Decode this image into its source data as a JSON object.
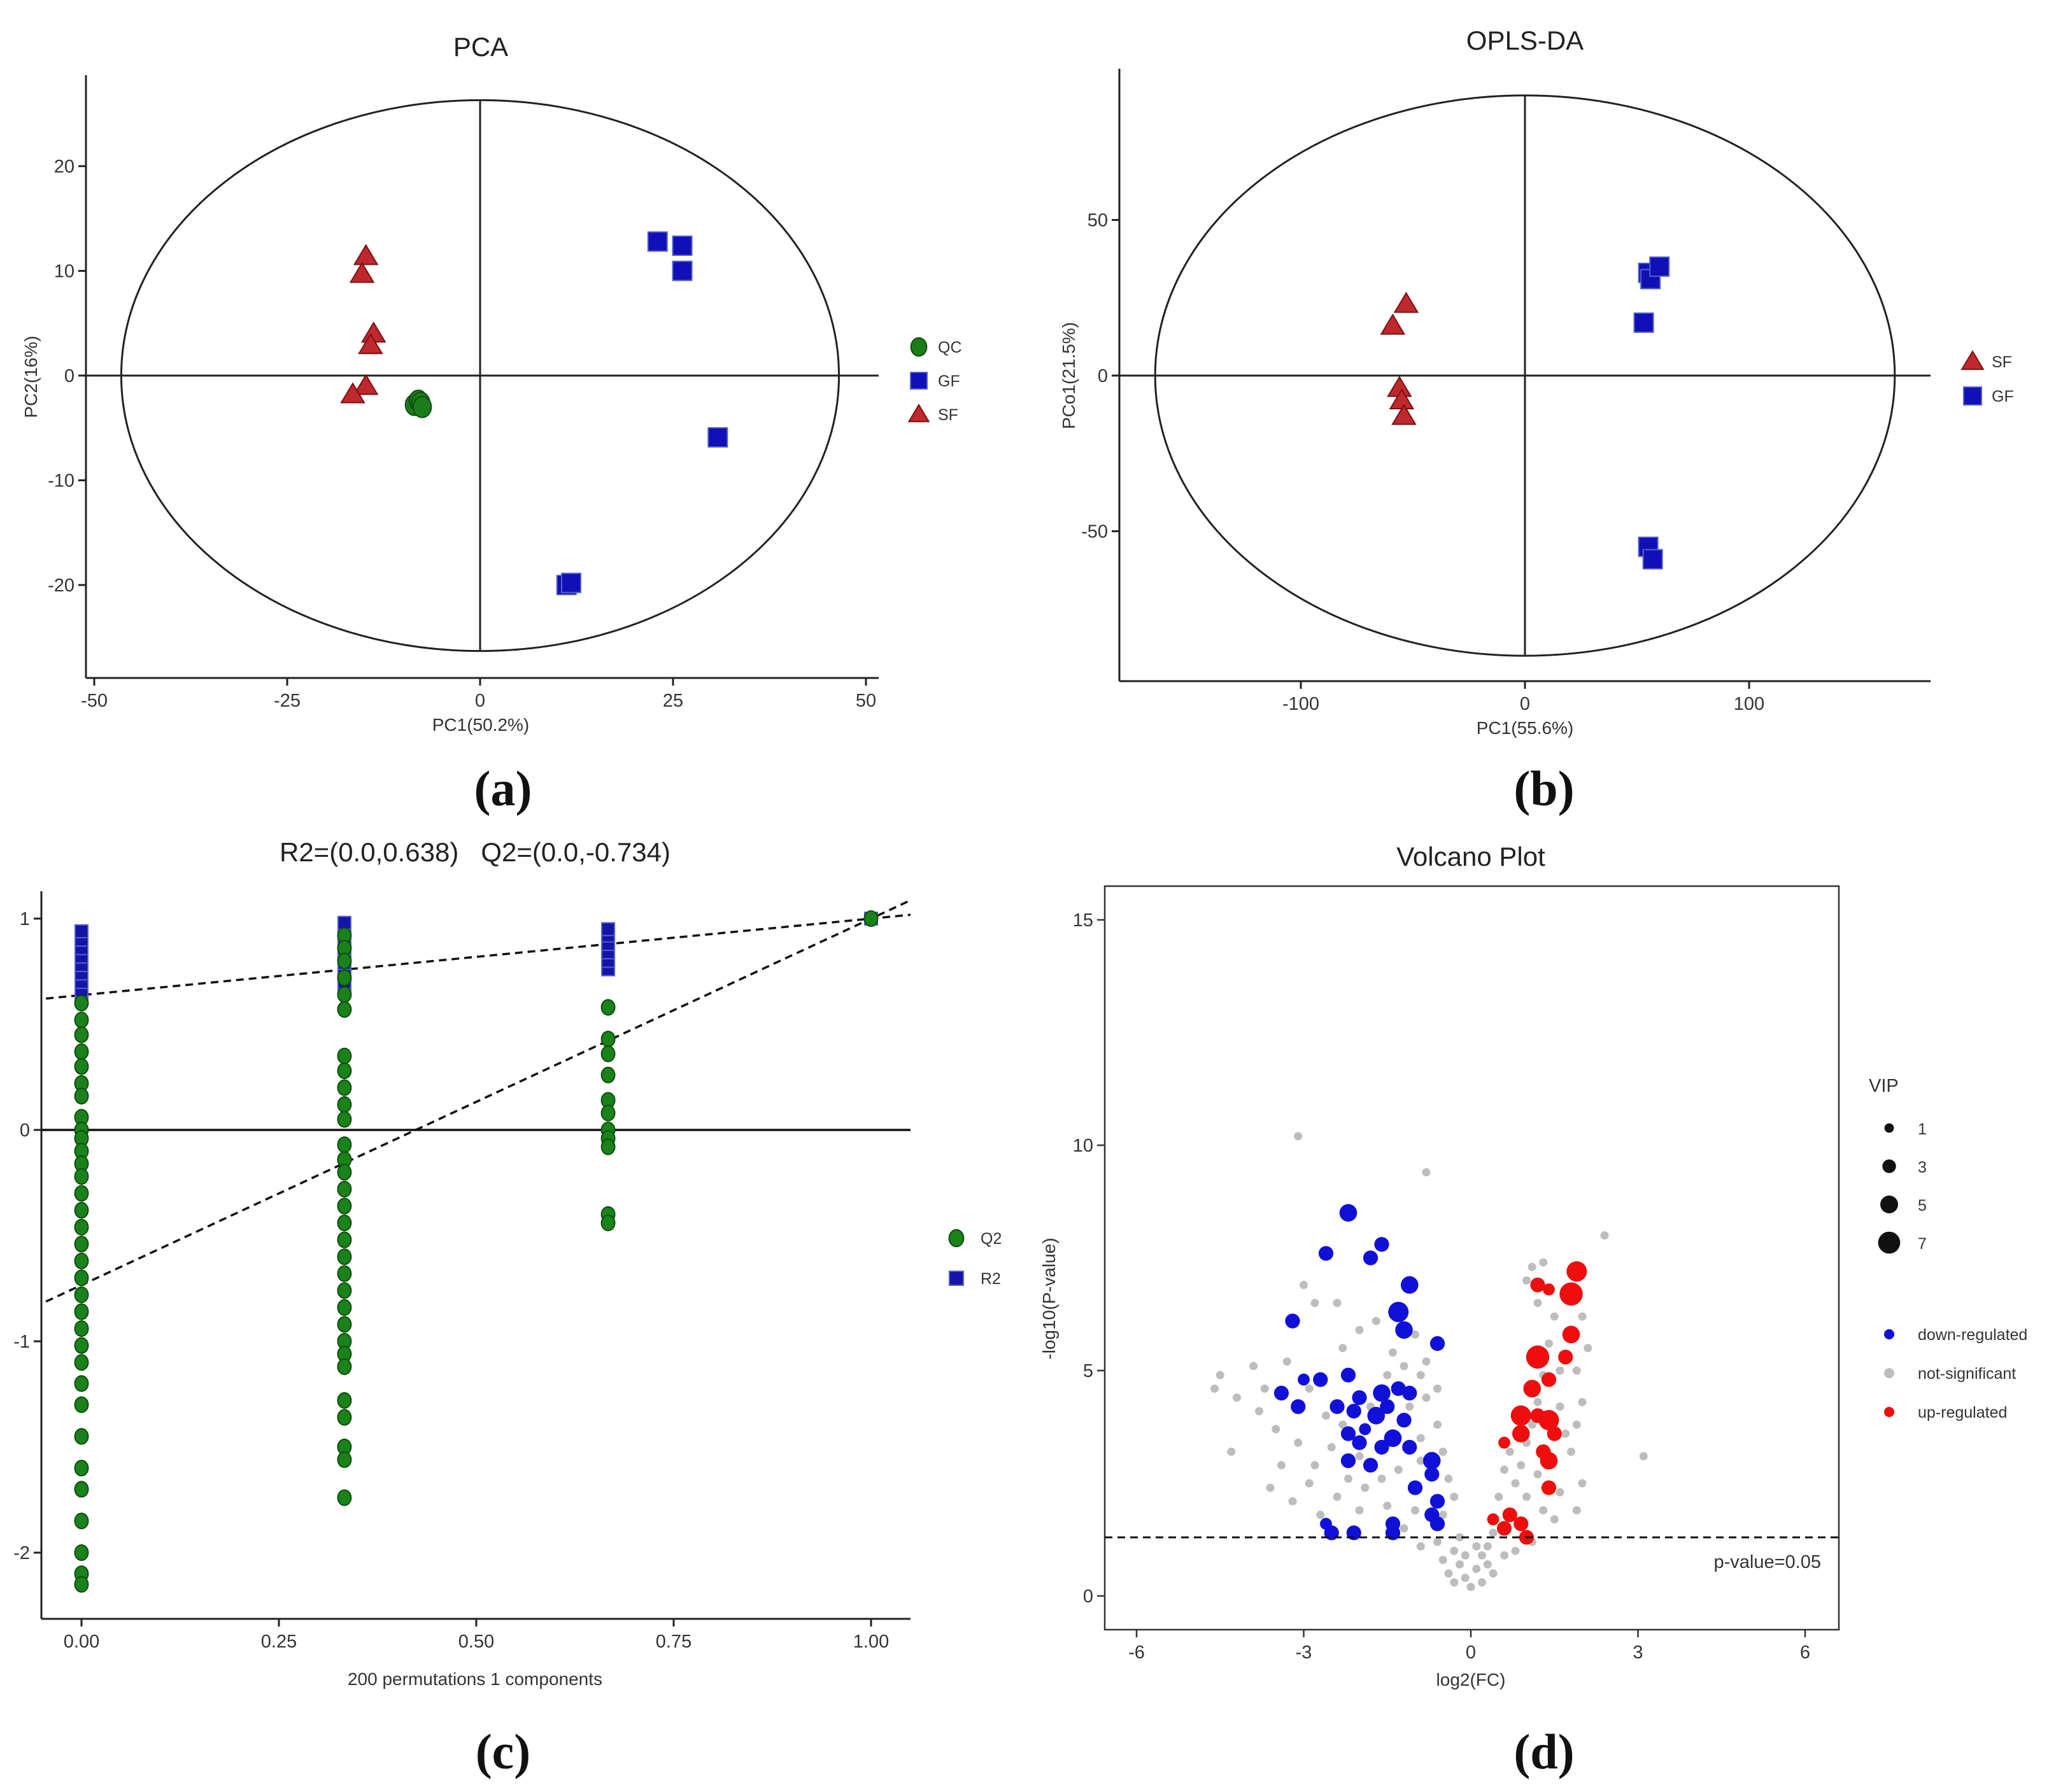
{
  "chart_data": [
    {
      "id": "a",
      "type": "scatter",
      "panel_label": "(a)",
      "title": "PCA",
      "xlabel": "PC1(50.2%)",
      "ylabel": "PC2(16%)",
      "xlim": [
        -50,
        50
      ],
      "ylim": [
        -28,
        29
      ],
      "xticks": [
        -50,
        -25,
        0,
        25,
        50
      ],
      "yticks": [
        -20,
        -10,
        0,
        10,
        20
      ],
      "ellipse": {
        "cx": 0,
        "cy": 0,
        "rx": 46.5,
        "ry": 26.3
      },
      "legend": [
        "QC",
        "GF",
        "SF"
      ],
      "series": [
        {
          "name": "QC",
          "marker": "circle",
          "color": "#1a7d1a",
          "points": [
            [
              -8.5,
              -2.8
            ],
            [
              -8.0,
              -2.4
            ],
            [
              -7.7,
              -2.6
            ],
            [
              -7.5,
              -3.0
            ]
          ]
        },
        {
          "name": "GF",
          "marker": "square",
          "color": "#1010b8",
          "points": [
            [
              23,
              12.8
            ],
            [
              26.2,
              12.4
            ],
            [
              26.2,
              10
            ],
            [
              30.8,
              -5.9
            ],
            [
              11.2,
              -20
            ],
            [
              11.8,
              -19.8
            ]
          ]
        },
        {
          "name": "SF",
          "marker": "triangle",
          "color": "#c0282d",
          "points": [
            [
              -14.8,
              11.4
            ],
            [
              -15.3,
              9.7
            ],
            [
              -13.8,
              4
            ],
            [
              -14.2,
              2.9
            ],
            [
              -14.8,
              -1
            ],
            [
              -16.5,
              -1.8
            ]
          ]
        }
      ]
    },
    {
      "id": "b",
      "type": "scatter",
      "panel_label": "(b)",
      "title": "OPLS-DA",
      "xlabel": "PC1(55.6%)",
      "ylabel": "PCo1(21.5%)",
      "xlim": [
        -180,
        180
      ],
      "ylim": [
        -100,
        100
      ],
      "xticks": [
        -100,
        0,
        100
      ],
      "yticks": [
        -50,
        0,
        50
      ],
      "ellipse": {
        "cx": 0,
        "cy": 0,
        "rx": 165,
        "ry": 90
      },
      "legend": [
        "SF",
        "GF"
      ],
      "series": [
        {
          "name": "SF",
          "marker": "triangle",
          "color": "#c0282d",
          "points": [
            [
              -59,
              16
            ],
            [
              -53,
              23
            ],
            [
              -56,
              -4
            ],
            [
              -55,
              -8
            ],
            [
              -54,
              -13
            ]
          ]
        },
        {
          "name": "GF",
          "marker": "square",
          "color": "#1010b8",
          "points": [
            [
              55,
              33
            ],
            [
              56,
              31
            ],
            [
              60,
              35
            ],
            [
              53,
              17
            ],
            [
              55,
              -55
            ],
            [
              57,
              -59
            ]
          ]
        }
      ]
    },
    {
      "id": "c",
      "type": "scatter",
      "panel_label": "(c)",
      "title": "R2=(0.0,0.638)   Q2=(0.0,-0.734)",
      "xlabel": "200 permutations 1 components",
      "ylabel": "",
      "xlim": [
        -0.045,
        1.05
      ],
      "ylim": [
        -2.33,
        1.12
      ],
      "xticks": [
        "0.00",
        "0.25",
        "0.50",
        "0.75",
        "1.00"
      ],
      "yticks": [
        "1",
        "0",
        "-1",
        "-2"
      ],
      "legend": [
        "Q2",
        "R2"
      ],
      "R2_line": {
        "intercept": 0.638,
        "slope": 0.362
      },
      "Q2_line": {
        "intercept": -0.734,
        "slope": 1.734
      },
      "R2_points": [
        {
          "x": 0.0,
          "values": [
            0.62,
            0.66,
            0.7,
            0.74,
            0.78,
            0.82,
            0.86,
            0.9,
            0.94
          ]
        },
        {
          "x": 0.333,
          "values": [
            0.66,
            0.7,
            0.73,
            0.76,
            0.79,
            0.82,
            0.86,
            0.9,
            0.94,
            0.98
          ]
        },
        {
          "x": 0.667,
          "values": [
            0.76,
            0.8,
            0.84,
            0.88,
            0.92,
            0.95
          ]
        },
        {
          "x": 1.0,
          "values": [
            1.0
          ]
        }
      ],
      "Q2_points": [
        {
          "x": 0.0,
          "values": [
            0.6,
            0.52,
            0.45,
            0.37,
            0.3,
            0.22,
            0.16,
            0.06,
            0.0,
            -0.04,
            -0.1,
            -0.16,
            -0.22,
            -0.3,
            -0.38,
            -0.46,
            -0.54,
            -0.62,
            -0.7,
            -0.78,
            -0.86,
            -0.94,
            -1.02,
            -1.1,
            -1.2,
            -1.3,
            -1.45,
            -1.6,
            -1.7,
            -1.85,
            -2.0,
            -2.1,
            -2.15
          ]
        },
        {
          "x": 0.333,
          "values": [
            0.92,
            0.86,
            0.8,
            0.72,
            0.64,
            0.57,
            0.35,
            0.28,
            0.2,
            0.12,
            0.05,
            -0.07,
            -0.14,
            -0.2,
            -0.28,
            -0.36,
            -0.44,
            -0.52,
            -0.6,
            -0.68,
            -0.76,
            -0.84,
            -0.92,
            -1.0,
            -1.06,
            -1.12,
            -1.28,
            -1.36,
            -1.5,
            -1.56,
            -1.74
          ]
        },
        {
          "x": 0.667,
          "values": [
            0.58,
            0.43,
            0.36,
            0.26,
            0.14,
            0.08,
            0.0,
            -0.04,
            -0.08,
            -0.4,
            -0.44
          ]
        },
        {
          "x": 1.0,
          "values": [
            1.0
          ]
        }
      ]
    },
    {
      "id": "d",
      "type": "scatter",
      "panel_label": "(d)",
      "title": "Volcano Plot",
      "xlabel": "log2(FC)",
      "ylabel": "-log10(P-value)",
      "xlim": [
        -6.5,
        6.5
      ],
      "ylim": [
        -0.8,
        15.8
      ],
      "xticks": [
        -6,
        -3,
        0,
        3,
        6
      ],
      "yticks": [
        0,
        5,
        10,
        15
      ],
      "threshold": {
        "value": 1.3,
        "label": "p-value=0.05"
      },
      "vip_legend": {
        "title": "VIP",
        "levels": [
          1,
          3,
          5,
          7
        ]
      },
      "legend": [
        "down-regulated",
        "not-significant",
        "up-regulated"
      ],
      "colors": {
        "down": "#1010d8",
        "ns": "#bdbdbd",
        "up": "#ee0e0e"
      },
      "down_points": [
        [
          -2.2,
          8.5,
          4
        ],
        [
          -2.6,
          7.6,
          3
        ],
        [
          -1.6,
          7.8,
          3
        ],
        [
          -1.8,
          7.5,
          3
        ],
        [
          -1.1,
          6.9,
          4
        ],
        [
          -1.3,
          6.3,
          5
        ],
        [
          -1.2,
          5.9,
          4
        ],
        [
          -3.2,
          6.1,
          3
        ],
        [
          -0.6,
          5.6,
          3
        ],
        [
          -2.7,
          4.8,
          3
        ],
        [
          -3.0,
          4.8,
          2
        ],
        [
          -3.4,
          4.5,
          3
        ],
        [
          -3.1,
          4.2,
          3
        ],
        [
          -2.2,
          4.9,
          3
        ],
        [
          -2.0,
          4.4,
          3
        ],
        [
          -1.6,
          4.5,
          4
        ],
        [
          -1.3,
          4.6,
          3
        ],
        [
          -1.1,
          4.5,
          3
        ],
        [
          -2.1,
          4.1,
          3
        ],
        [
          -2.4,
          4.2,
          3
        ],
        [
          -1.7,
          4.0,
          4
        ],
        [
          -1.5,
          4.2,
          3
        ],
        [
          -1.2,
          3.9,
          3
        ],
        [
          -1.9,
          3.7,
          2
        ],
        [
          -1.4,
          3.5,
          4
        ],
        [
          -1.1,
          3.3,
          3
        ],
        [
          -2.2,
          3.6,
          3
        ],
        [
          -2.0,
          3.4,
          3
        ],
        [
          -1.6,
          3.3,
          3
        ],
        [
          -0.7,
          3.0,
          4
        ],
        [
          -0.7,
          2.7,
          3
        ],
        [
          -2.2,
          3.0,
          3
        ],
        [
          -1.8,
          2.9,
          3
        ],
        [
          -1.0,
          2.4,
          3
        ],
        [
          -0.6,
          2.1,
          3
        ],
        [
          -0.7,
          1.8,
          3
        ],
        [
          -0.6,
          1.6,
          3
        ],
        [
          -1.4,
          1.6,
          3
        ],
        [
          -2.6,
          1.6,
          2
        ],
        [
          -2.1,
          1.4,
          3
        ],
        [
          -2.5,
          1.4,
          3
        ],
        [
          -1.4,
          1.4,
          3
        ]
      ],
      "up_points": [
        [
          1.9,
          7.2,
          5
        ],
        [
          1.8,
          6.7,
          6
        ],
        [
          1.2,
          6.9,
          3
        ],
        [
          1.4,
          6.8,
          2
        ],
        [
          1.2,
          5.3,
          6
        ],
        [
          1.7,
          5.3,
          3
        ],
        [
          1.8,
          5.8,
          4
        ],
        [
          1.1,
          4.6,
          4
        ],
        [
          1.4,
          4.8,
          3
        ],
        [
          0.9,
          4.0,
          5
        ],
        [
          1.2,
          4.0,
          3
        ],
        [
          1.4,
          3.9,
          5
        ],
        [
          1.5,
          3.6,
          3
        ],
        [
          0.9,
          3.6,
          4
        ],
        [
          0.6,
          3.4,
          2
        ],
        [
          1.3,
          3.2,
          3
        ],
        [
          1.4,
          3.0,
          4
        ],
        [
          1.4,
          2.4,
          3
        ],
        [
          0.7,
          1.8,
          3
        ],
        [
          0.4,
          1.7,
          2
        ],
        [
          0.6,
          1.5,
          3
        ],
        [
          0.9,
          1.6,
          3
        ],
        [
          1.0,
          1.3,
          3
        ]
      ],
      "ns_points": [
        [
          -3.1,
          10.2
        ],
        [
          -0.8,
          9.4
        ],
        [
          2.4,
          8.0
        ],
        [
          -3.0,
          6.9
        ],
        [
          -2.8,
          6.5
        ],
        [
          -2.4,
          6.5
        ],
        [
          -4.5,
          4.9
        ],
        [
          -4.6,
          4.6
        ],
        [
          -4.2,
          4.4
        ],
        [
          -3.9,
          5.1
        ],
        [
          -4.3,
          3.2
        ],
        [
          -3.6,
          2.4
        ],
        [
          -3.2,
          2.1
        ],
        [
          -2.7,
          1.8
        ],
        [
          -2.4,
          2.2
        ],
        [
          3.1,
          3.1
        ],
        [
          2.0,
          6.2
        ],
        [
          2.1,
          5.5
        ],
        [
          1.9,
          5.0
        ],
        [
          2.0,
          4.3
        ],
        [
          1.9,
          3.8
        ],
        [
          2.0,
          2.5
        ],
        [
          1.9,
          1.9
        ],
        [
          0.5,
          2.2
        ],
        [
          0.3,
          1.1
        ],
        [
          -0.3,
          1.0
        ],
        [
          -0.5,
          0.8
        ],
        [
          0.1,
          0.6
        ],
        [
          -0.1,
          0.4
        ],
        [
          0.0,
          0.2
        ],
        [
          0.2,
          0.3
        ],
        [
          -0.2,
          0.7
        ],
        [
          0.4,
          0.5
        ],
        [
          -0.4,
          0.5
        ],
        [
          0.6,
          0.9
        ],
        [
          -0.6,
          1.2
        ],
        [
          0.8,
          1.0
        ],
        [
          -0.9,
          1.1
        ],
        [
          1.1,
          1.2
        ],
        [
          -1.2,
          1.5
        ],
        [
          -3.3,
          5.2
        ],
        [
          -2.9,
          4.6
        ],
        [
          -2.6,
          4.0
        ],
        [
          -2.3,
          3.8
        ],
        [
          -2.5,
          3.3
        ],
        [
          -2.0,
          3.1
        ],
        [
          -1.8,
          4.2
        ],
        [
          -1.5,
          4.9
        ],
        [
          -1.2,
          5.1
        ],
        [
          -0.9,
          4.9
        ],
        [
          -1.4,
          5.4
        ],
        [
          -2.3,
          5.5
        ],
        [
          -2.0,
          5.9
        ],
        [
          -1.7,
          6.1
        ],
        [
          -1.0,
          5.8
        ],
        [
          -0.8,
          4.4
        ],
        [
          -0.6,
          3.8
        ],
        [
          -0.9,
          3.5
        ],
        [
          -0.5,
          3.2
        ],
        [
          -1.3,
          2.8
        ],
        [
          -1.6,
          2.6
        ],
        [
          -1.9,
          2.4
        ],
        [
          -2.2,
          2.6
        ],
        [
          -2.8,
          2.9
        ],
        [
          -3.1,
          3.4
        ],
        [
          -3.5,
          3.7
        ],
        [
          -3.8,
          4.1
        ],
        [
          -0.4,
          2.6
        ],
        [
          -0.3,
          2.2
        ],
        [
          -0.5,
          1.8
        ],
        [
          -1.0,
          1.9
        ],
        [
          -1.5,
          2.0
        ],
        [
          -2.0,
          1.9
        ],
        [
          -2.9,
          2.5
        ],
        [
          -3.4,
          2.9
        ],
        [
          -3.7,
          4.6
        ],
        [
          -0.9,
          3.0
        ],
        [
          -1.1,
          4.2
        ],
        [
          -0.8,
          5.2
        ],
        [
          -0.6,
          4.6
        ],
        [
          0.7,
          3.2
        ],
        [
          0.6,
          2.8
        ],
        [
          0.8,
          2.5
        ],
        [
          0.9,
          2.9
        ],
        [
          1.0,
          3.4
        ],
        [
          1.1,
          3.8
        ],
        [
          1.2,
          4.3
        ],
        [
          1.3,
          4.9
        ],
        [
          1.4,
          5.6
        ],
        [
          1.5,
          6.2
        ],
        [
          1.2,
          6.5
        ],
        [
          1.1,
          7.3
        ],
        [
          1.3,
          7.4
        ],
        [
          1.0,
          7.0
        ],
        [
          1.6,
          5.0
        ],
        [
          1.6,
          4.2
        ],
        [
          1.7,
          3.6
        ],
        [
          1.8,
          3.2
        ],
        [
          1.2,
          2.7
        ],
        [
          1.0,
          2.2
        ],
        [
          1.3,
          1.9
        ],
        [
          1.5,
          1.7
        ],
        [
          1.6,
          2.3
        ],
        [
          0.4,
          1.4
        ],
        [
          0.2,
          0.9
        ],
        [
          -0.2,
          1.3
        ],
        [
          -0.1,
          0.9
        ],
        [
          0.1,
          1.1
        ],
        [
          0.3,
          0.7
        ],
        [
          -0.3,
          0.3
        ]
      ]
    }
  ]
}
